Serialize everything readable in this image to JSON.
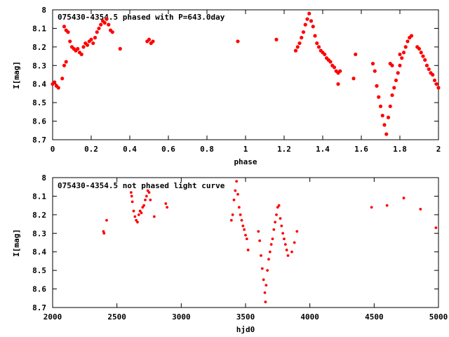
{
  "chart_data": [
    {
      "type": "scatter",
      "title": "075430-4354.5 phased with P=643.0day",
      "xlabel": "phase",
      "ylabel": "I[mag]",
      "xlim": [
        0,
        2
      ],
      "ylim": [
        8.7,
        8.0
      ],
      "y_inverted": true,
      "x_ticks": [
        0,
        0.2,
        0.4,
        0.6,
        0.8,
        1,
        1.2,
        1.4,
        1.6,
        1.8,
        2
      ],
      "x_tick_labels": [
        "0",
        "0.2",
        "0.4",
        "0.6",
        "0.8",
        "1",
        "1.2",
        "1.4",
        "1.6",
        "1.8",
        "2"
      ],
      "y_ticks": [
        8,
        8.1,
        8.2,
        8.3,
        8.4,
        8.5,
        8.6,
        8.7
      ],
      "y_tick_labels": [
        "8",
        "8.1",
        "8.2",
        "8.3",
        "8.4",
        "8.5",
        "8.6",
        "8.7"
      ],
      "grid": false,
      "marker_color": "#ff0000",
      "series": [
        {
          "points": [
            [
              0.0,
              8.4
            ],
            [
              0.01,
              8.39
            ],
            [
              0.02,
              8.41
            ],
            [
              0.03,
              8.42
            ],
            [
              0.05,
              8.37
            ],
            [
              0.06,
              8.3
            ],
            [
              0.07,
              8.28
            ],
            [
              0.06,
              8.09
            ],
            [
              0.07,
              8.11
            ],
            [
              0.08,
              8.12
            ],
            [
              0.09,
              8.17
            ],
            [
              0.1,
              8.2
            ],
            [
              0.11,
              8.21
            ],
            [
              0.12,
              8.22
            ],
            [
              0.13,
              8.21
            ],
            [
              0.14,
              8.23
            ],
            [
              0.15,
              8.24
            ],
            [
              0.16,
              8.2
            ],
            [
              0.17,
              8.18
            ],
            [
              0.18,
              8.19
            ],
            [
              0.19,
              8.17
            ],
            [
              0.2,
              8.16
            ],
            [
              0.21,
              8.18
            ],
            [
              0.22,
              8.15
            ],
            [
              0.23,
              8.12
            ],
            [
              0.24,
              8.1
            ],
            [
              0.25,
              8.08
            ],
            [
              0.26,
              8.06
            ],
            [
              0.27,
              8.07
            ],
            [
              0.28,
              8.05
            ],
            [
              0.29,
              8.08
            ],
            [
              0.3,
              8.11
            ],
            [
              0.31,
              8.12
            ],
            [
              0.35,
              8.21
            ],
            [
              0.49,
              8.17
            ],
            [
              0.5,
              8.16
            ],
            [
              0.51,
              8.18
            ],
            [
              0.52,
              8.17
            ],
            [
              0.96,
              8.17
            ],
            [
              1.16,
              8.16
            ],
            [
              1.26,
              8.22
            ],
            [
              1.27,
              8.2
            ],
            [
              1.28,
              8.18
            ],
            [
              1.29,
              8.15
            ],
            [
              1.3,
              8.12
            ],
            [
              1.31,
              8.08
            ],
            [
              1.32,
              8.05
            ],
            [
              1.33,
              8.02
            ],
            [
              1.34,
              8.06
            ],
            [
              1.35,
              8.09
            ],
            [
              1.36,
              8.14
            ],
            [
              1.37,
              8.18
            ],
            [
              1.38,
              8.2
            ],
            [
              1.39,
              8.22
            ],
            [
              1.4,
              8.23
            ],
            [
              1.41,
              8.24
            ],
            [
              1.42,
              8.26
            ],
            [
              1.43,
              8.27
            ],
            [
              1.44,
              8.28
            ],
            [
              1.45,
              8.3
            ],
            [
              1.46,
              8.31
            ],
            [
              1.47,
              8.33
            ],
            [
              1.48,
              8.34
            ],
            [
              1.49,
              8.33
            ],
            [
              1.48,
              8.4
            ],
            [
              1.56,
              8.37
            ],
            [
              1.57,
              8.24
            ],
            [
              1.66,
              8.29
            ],
            [
              1.67,
              8.33
            ],
            [
              1.68,
              8.41
            ],
            [
              1.69,
              8.47
            ],
            [
              1.7,
              8.52
            ],
            [
              1.71,
              8.57
            ],
            [
              1.72,
              8.62
            ],
            [
              1.73,
              8.67
            ],
            [
              1.74,
              8.58
            ],
            [
              1.75,
              8.52
            ],
            [
              1.76,
              8.46
            ],
            [
              1.77,
              8.42
            ],
            [
              1.78,
              8.38
            ],
            [
              1.79,
              8.34
            ],
            [
              1.8,
              8.3
            ],
            [
              1.81,
              8.26
            ],
            [
              1.82,
              8.23
            ],
            [
              1.83,
              8.2
            ],
            [
              1.84,
              8.17
            ],
            [
              1.85,
              8.15
            ],
            [
              1.86,
              8.14
            ],
            [
              1.75,
              8.29
            ],
            [
              1.76,
              8.3
            ],
            [
              1.8,
              8.24
            ],
            [
              1.89,
              8.2
            ],
            [
              1.9,
              8.21
            ],
            [
              1.91,
              8.23
            ],
            [
              1.92,
              8.25
            ],
            [
              1.93,
              8.27
            ],
            [
              1.94,
              8.3
            ],
            [
              1.95,
              8.32
            ],
            [
              1.96,
              8.34
            ],
            [
              1.97,
              8.35
            ],
            [
              1.98,
              8.38
            ],
            [
              1.99,
              8.4
            ],
            [
              2.0,
              8.42
            ]
          ]
        }
      ]
    },
    {
      "type": "scatter",
      "title": "075430-4354.5 not phased light curve",
      "xlabel": "hjd0",
      "ylabel": "I[mag]",
      "xlim": [
        2000,
        5000
      ],
      "ylim": [
        8.7,
        8.0
      ],
      "y_inverted": true,
      "x_ticks": [
        2000,
        2500,
        3000,
        3500,
        4000,
        4500,
        5000
      ],
      "x_tick_labels": [
        "2000",
        "2500",
        "3000",
        "3500",
        "4000",
        "4500",
        "5000"
      ],
      "y_ticks": [
        8,
        8.1,
        8.2,
        8.3,
        8.4,
        8.5,
        8.6,
        8.7
      ],
      "y_tick_labels": [
        "8",
        "8.1",
        "8.2",
        "8.3",
        "8.4",
        "8.5",
        "8.6",
        "8.7"
      ],
      "grid": false,
      "marker_color": "#ff0000",
      "series": [
        {
          "points": [
            [
              2395,
              8.29
            ],
            [
              2400,
              8.3
            ],
            [
              2420,
              8.23
            ],
            [
              2610,
              8.08
            ],
            [
              2615,
              8.1
            ],
            [
              2620,
              8.13
            ],
            [
              2630,
              8.18
            ],
            [
              2640,
              8.21
            ],
            [
              2650,
              8.23
            ],
            [
              2660,
              8.24
            ],
            [
              2670,
              8.2
            ],
            [
              2680,
              8.18
            ],
            [
              2690,
              8.19
            ],
            [
              2700,
              8.16
            ],
            [
              2710,
              8.15
            ],
            [
              2720,
              8.12
            ],
            [
              2730,
              8.1
            ],
            [
              2740,
              8.07
            ],
            [
              2750,
              8.08
            ],
            [
              2760,
              8.12
            ],
            [
              2790,
              8.21
            ],
            [
              2880,
              8.14
            ],
            [
              2890,
              8.16
            ],
            [
              3390,
              8.23
            ],
            [
              3400,
              8.2
            ],
            [
              3410,
              8.12
            ],
            [
              3420,
              8.07
            ],
            [
              3430,
              8.02
            ],
            [
              3440,
              8.09
            ],
            [
              3450,
              8.16
            ],
            [
              3460,
              8.2
            ],
            [
              3470,
              8.23
            ],
            [
              3480,
              8.26
            ],
            [
              3490,
              8.28
            ],
            [
              3500,
              8.31
            ],
            [
              3510,
              8.33
            ],
            [
              3520,
              8.39
            ],
            [
              3600,
              8.29
            ],
            [
              3610,
              8.34
            ],
            [
              3620,
              8.42
            ],
            [
              3630,
              8.49
            ],
            [
              3640,
              8.55
            ],
            [
              3650,
              8.62
            ],
            [
              3655,
              8.67
            ],
            [
              3660,
              8.58
            ],
            [
              3670,
              8.5
            ],
            [
              3680,
              8.44
            ],
            [
              3690,
              8.4
            ],
            [
              3700,
              8.36
            ],
            [
              3710,
              8.33
            ],
            [
              3720,
              8.28
            ],
            [
              3730,
              8.24
            ],
            [
              3740,
              8.2
            ],
            [
              3750,
              8.16
            ],
            [
              3760,
              8.15
            ],
            [
              3770,
              8.22
            ],
            [
              3780,
              8.26
            ],
            [
              3790,
              8.3
            ],
            [
              3800,
              8.33
            ],
            [
              3810,
              8.36
            ],
            [
              3820,
              8.39
            ],
            [
              3830,
              8.42
            ],
            [
              3860,
              8.4
            ],
            [
              3880,
              8.35
            ],
            [
              3900,
              8.29
            ],
            [
              4480,
              8.16
            ],
            [
              4600,
              8.15
            ],
            [
              4730,
              8.11
            ],
            [
              4860,
              8.17
            ],
            [
              4980,
              8.27
            ]
          ]
        }
      ]
    }
  ]
}
